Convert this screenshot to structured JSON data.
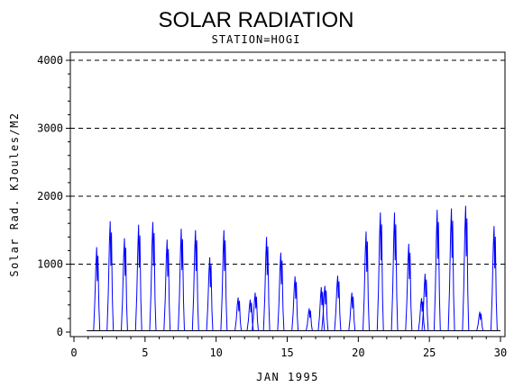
{
  "chart_data": {
    "type": "line",
    "title": "SOLAR RADIATION",
    "subtitle": "STATION=HOGI",
    "xlabel": "JAN 1995",
    "ylabel": "Solar Rad. KJoules/M2",
    "xlim": [
      0,
      30
    ],
    "ylim": [
      0,
      4000
    ],
    "x_ticks": [
      0,
      5,
      10,
      15,
      20,
      25,
      30
    ],
    "y_ticks": [
      0,
      1000,
      2000,
      3000,
      4000
    ],
    "grid": "horizontal dashed",
    "colors": {
      "series": "#0000ff",
      "baseline": "#000000",
      "axes": "#000000"
    },
    "series": [
      {
        "peaks": [
          {
            "x": 1.6,
            "y": 1250
          },
          {
            "x": 2.55,
            "y": 1630
          },
          {
            "x": 3.55,
            "y": 1380
          },
          {
            "x": 4.55,
            "y": 1580
          },
          {
            "x": 5.55,
            "y": 1620
          },
          {
            "x": 6.55,
            "y": 1360
          },
          {
            "x": 7.55,
            "y": 1520
          },
          {
            "x": 8.55,
            "y": 1500
          },
          {
            "x": 9.55,
            "y": 1100
          },
          {
            "x": 10.55,
            "y": 1500
          },
          {
            "x": 11.55,
            "y": 510
          },
          {
            "x": 12.4,
            "y": 480
          },
          {
            "x": 12.75,
            "y": 580
          },
          {
            "x": 13.55,
            "y": 1400
          },
          {
            "x": 14.55,
            "y": 1170
          },
          {
            "x": 15.55,
            "y": 820
          },
          {
            "x": 16.55,
            "y": 350
          },
          {
            "x": 17.4,
            "y": 660
          },
          {
            "x": 17.65,
            "y": 680
          },
          {
            "x": 18.55,
            "y": 830
          },
          {
            "x": 19.55,
            "y": 580
          },
          {
            "x": 20.55,
            "y": 1480
          },
          {
            "x": 21.55,
            "y": 1760
          },
          {
            "x": 22.55,
            "y": 1760
          },
          {
            "x": 23.55,
            "y": 1300
          },
          {
            "x": 24.45,
            "y": 500
          },
          {
            "x": 24.7,
            "y": 860
          },
          {
            "x": 25.55,
            "y": 1800
          },
          {
            "x": 26.55,
            "y": 1820
          },
          {
            "x": 27.55,
            "y": 1860
          },
          {
            "x": 28.55,
            "y": 300
          },
          {
            "x": 29.55,
            "y": 1560
          }
        ]
      }
    ]
  }
}
